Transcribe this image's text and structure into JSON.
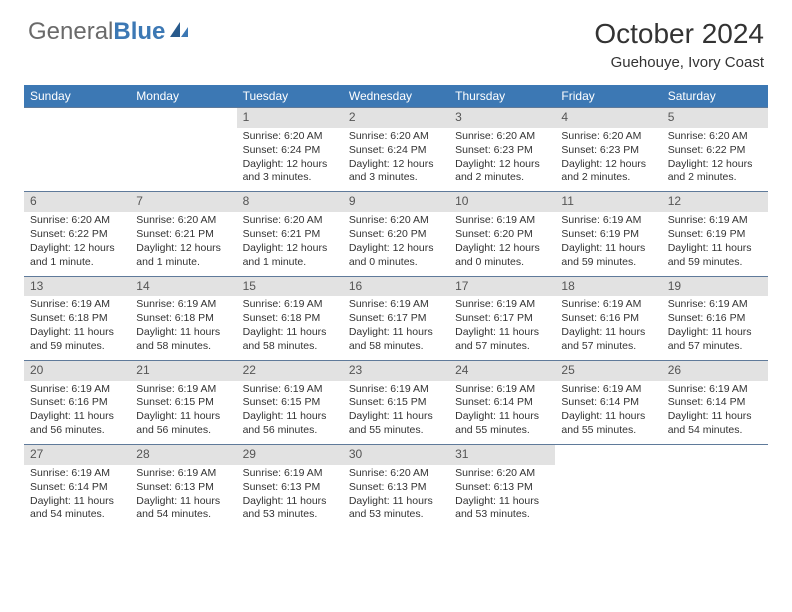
{
  "brand": {
    "part1": "General",
    "part2": "Blue"
  },
  "title": "October 2024",
  "location": "Guehouye, Ivory Coast",
  "colors": {
    "header_bg": "#3c78b4",
    "header_text": "#ffffff",
    "daynum_bg": "#e2e2e2",
    "border": "#5f7a9a",
    "text": "#333333"
  },
  "dayHeaders": [
    "Sunday",
    "Monday",
    "Tuesday",
    "Wednesday",
    "Thursday",
    "Friday",
    "Saturday"
  ],
  "weeks": [
    [
      {
        "n": "",
        "sunrise": "",
        "sunset": "",
        "daylight": "",
        "empty": true
      },
      {
        "n": "",
        "sunrise": "",
        "sunset": "",
        "daylight": "",
        "empty": true
      },
      {
        "n": "1",
        "sunrise": "Sunrise: 6:20 AM",
        "sunset": "Sunset: 6:24 PM",
        "daylight": "Daylight: 12 hours and 3 minutes."
      },
      {
        "n": "2",
        "sunrise": "Sunrise: 6:20 AM",
        "sunset": "Sunset: 6:24 PM",
        "daylight": "Daylight: 12 hours and 3 minutes."
      },
      {
        "n": "3",
        "sunrise": "Sunrise: 6:20 AM",
        "sunset": "Sunset: 6:23 PM",
        "daylight": "Daylight: 12 hours and 2 minutes."
      },
      {
        "n": "4",
        "sunrise": "Sunrise: 6:20 AM",
        "sunset": "Sunset: 6:23 PM",
        "daylight": "Daylight: 12 hours and 2 minutes."
      },
      {
        "n": "5",
        "sunrise": "Sunrise: 6:20 AM",
        "sunset": "Sunset: 6:22 PM",
        "daylight": "Daylight: 12 hours and 2 minutes."
      }
    ],
    [
      {
        "n": "6",
        "sunrise": "Sunrise: 6:20 AM",
        "sunset": "Sunset: 6:22 PM",
        "daylight": "Daylight: 12 hours and 1 minute."
      },
      {
        "n": "7",
        "sunrise": "Sunrise: 6:20 AM",
        "sunset": "Sunset: 6:21 PM",
        "daylight": "Daylight: 12 hours and 1 minute."
      },
      {
        "n": "8",
        "sunrise": "Sunrise: 6:20 AM",
        "sunset": "Sunset: 6:21 PM",
        "daylight": "Daylight: 12 hours and 1 minute."
      },
      {
        "n": "9",
        "sunrise": "Sunrise: 6:20 AM",
        "sunset": "Sunset: 6:20 PM",
        "daylight": "Daylight: 12 hours and 0 minutes."
      },
      {
        "n": "10",
        "sunrise": "Sunrise: 6:19 AM",
        "sunset": "Sunset: 6:20 PM",
        "daylight": "Daylight: 12 hours and 0 minutes."
      },
      {
        "n": "11",
        "sunrise": "Sunrise: 6:19 AM",
        "sunset": "Sunset: 6:19 PM",
        "daylight": "Daylight: 11 hours and 59 minutes."
      },
      {
        "n": "12",
        "sunrise": "Sunrise: 6:19 AM",
        "sunset": "Sunset: 6:19 PM",
        "daylight": "Daylight: 11 hours and 59 minutes."
      }
    ],
    [
      {
        "n": "13",
        "sunrise": "Sunrise: 6:19 AM",
        "sunset": "Sunset: 6:18 PM",
        "daylight": "Daylight: 11 hours and 59 minutes."
      },
      {
        "n": "14",
        "sunrise": "Sunrise: 6:19 AM",
        "sunset": "Sunset: 6:18 PM",
        "daylight": "Daylight: 11 hours and 58 minutes."
      },
      {
        "n": "15",
        "sunrise": "Sunrise: 6:19 AM",
        "sunset": "Sunset: 6:18 PM",
        "daylight": "Daylight: 11 hours and 58 minutes."
      },
      {
        "n": "16",
        "sunrise": "Sunrise: 6:19 AM",
        "sunset": "Sunset: 6:17 PM",
        "daylight": "Daylight: 11 hours and 58 minutes."
      },
      {
        "n": "17",
        "sunrise": "Sunrise: 6:19 AM",
        "sunset": "Sunset: 6:17 PM",
        "daylight": "Daylight: 11 hours and 57 minutes."
      },
      {
        "n": "18",
        "sunrise": "Sunrise: 6:19 AM",
        "sunset": "Sunset: 6:16 PM",
        "daylight": "Daylight: 11 hours and 57 minutes."
      },
      {
        "n": "19",
        "sunrise": "Sunrise: 6:19 AM",
        "sunset": "Sunset: 6:16 PM",
        "daylight": "Daylight: 11 hours and 57 minutes."
      }
    ],
    [
      {
        "n": "20",
        "sunrise": "Sunrise: 6:19 AM",
        "sunset": "Sunset: 6:16 PM",
        "daylight": "Daylight: 11 hours and 56 minutes."
      },
      {
        "n": "21",
        "sunrise": "Sunrise: 6:19 AM",
        "sunset": "Sunset: 6:15 PM",
        "daylight": "Daylight: 11 hours and 56 minutes."
      },
      {
        "n": "22",
        "sunrise": "Sunrise: 6:19 AM",
        "sunset": "Sunset: 6:15 PM",
        "daylight": "Daylight: 11 hours and 56 minutes."
      },
      {
        "n": "23",
        "sunrise": "Sunrise: 6:19 AM",
        "sunset": "Sunset: 6:15 PM",
        "daylight": "Daylight: 11 hours and 55 minutes."
      },
      {
        "n": "24",
        "sunrise": "Sunrise: 6:19 AM",
        "sunset": "Sunset: 6:14 PM",
        "daylight": "Daylight: 11 hours and 55 minutes."
      },
      {
        "n": "25",
        "sunrise": "Sunrise: 6:19 AM",
        "sunset": "Sunset: 6:14 PM",
        "daylight": "Daylight: 11 hours and 55 minutes."
      },
      {
        "n": "26",
        "sunrise": "Sunrise: 6:19 AM",
        "sunset": "Sunset: 6:14 PM",
        "daylight": "Daylight: 11 hours and 54 minutes."
      }
    ],
    [
      {
        "n": "27",
        "sunrise": "Sunrise: 6:19 AM",
        "sunset": "Sunset: 6:14 PM",
        "daylight": "Daylight: 11 hours and 54 minutes."
      },
      {
        "n": "28",
        "sunrise": "Sunrise: 6:19 AM",
        "sunset": "Sunset: 6:13 PM",
        "daylight": "Daylight: 11 hours and 54 minutes."
      },
      {
        "n": "29",
        "sunrise": "Sunrise: 6:19 AM",
        "sunset": "Sunset: 6:13 PM",
        "daylight": "Daylight: 11 hours and 53 minutes."
      },
      {
        "n": "30",
        "sunrise": "Sunrise: 6:20 AM",
        "sunset": "Sunset: 6:13 PM",
        "daylight": "Daylight: 11 hours and 53 minutes."
      },
      {
        "n": "31",
        "sunrise": "Sunrise: 6:20 AM",
        "sunset": "Sunset: 6:13 PM",
        "daylight": "Daylight: 11 hours and 53 minutes."
      },
      {
        "n": "",
        "sunrise": "",
        "sunset": "",
        "daylight": "",
        "empty": true
      },
      {
        "n": "",
        "sunrise": "",
        "sunset": "",
        "daylight": "",
        "empty": true
      }
    ]
  ]
}
